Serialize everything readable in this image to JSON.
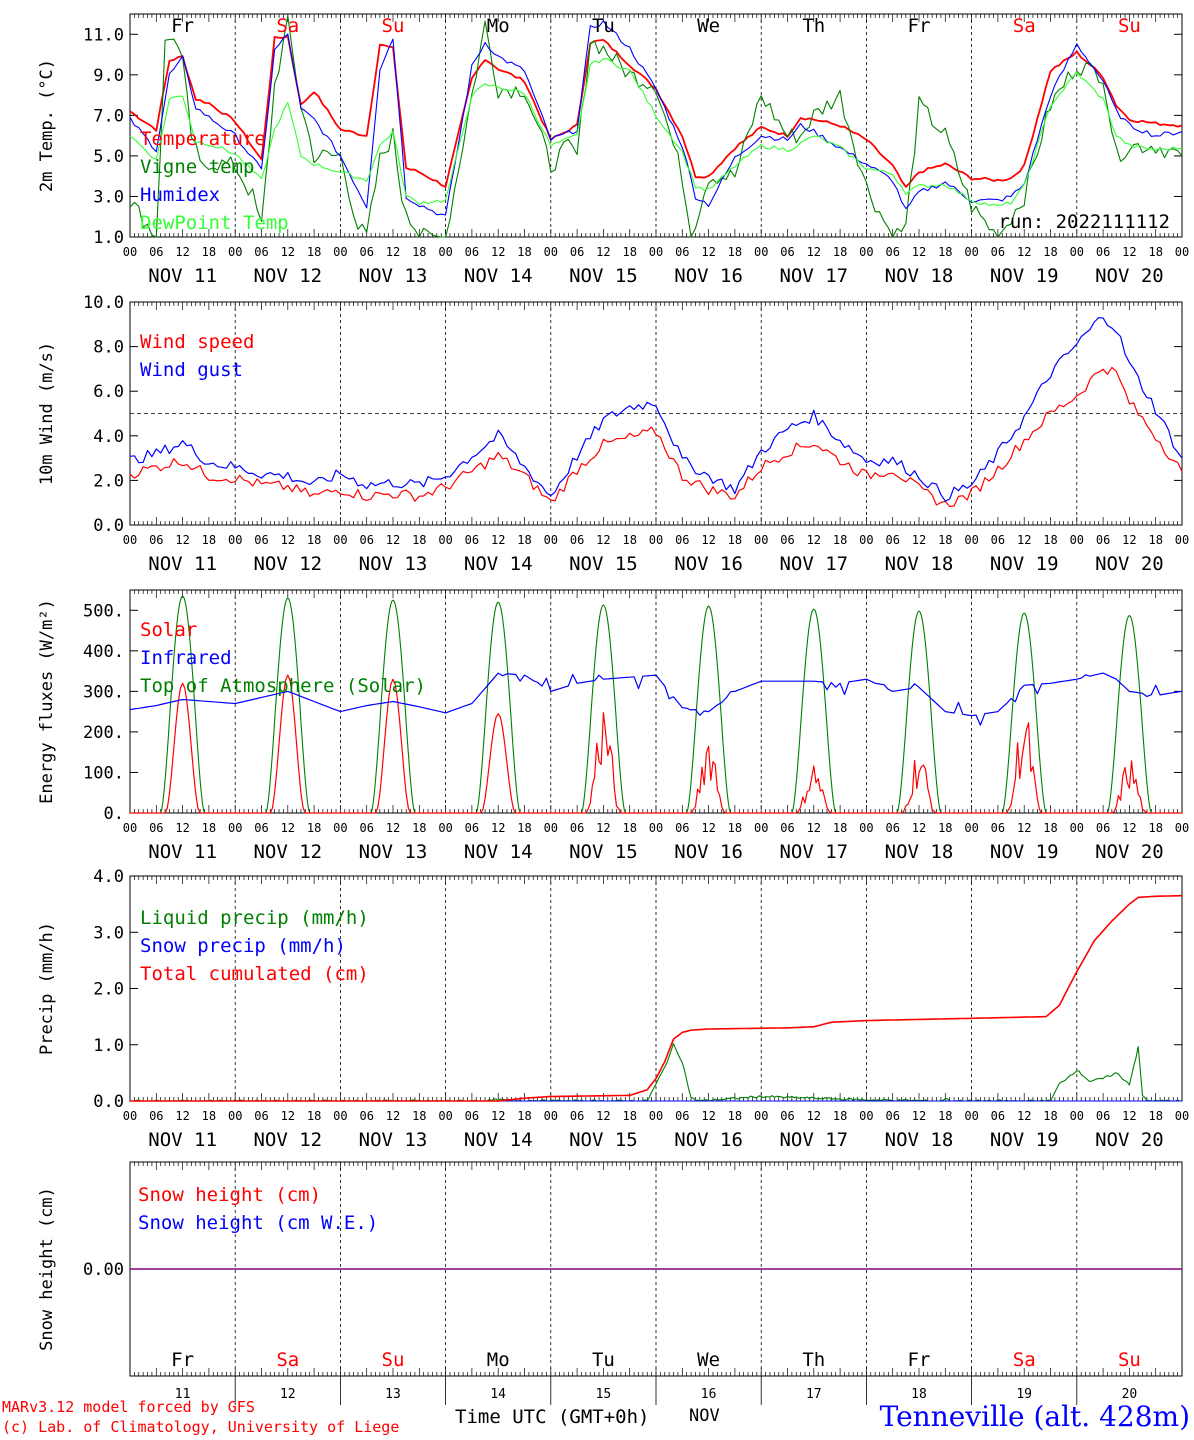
{
  "days_header": [
    "Fr",
    "Sa",
    "Su",
    "Mo",
    "Tu",
    "We",
    "Th",
    "Fr",
    "Sa",
    "Su"
  ],
  "days_header_red": [
    false,
    true,
    true,
    false,
    false,
    false,
    false,
    false,
    true,
    true
  ],
  "date_labels": [
    "NOV 11",
    "NOV 12",
    "NOV 13",
    "NOV 14",
    "NOV 15",
    "NOV 16",
    "NOV 17",
    "NOV 18",
    "NOV 19",
    "NOV 20"
  ],
  "hour_labels": [
    "00",
    "06",
    "12",
    "18"
  ],
  "hour_label_end": "00",
  "footer": {
    "day_numbers": [
      "11",
      "12",
      "13",
      "14",
      "15",
      "16",
      "17",
      "18",
      "19",
      "20"
    ],
    "month": "NOV",
    "xlabel": "Time UTC (GMT+0h)",
    "credit1": "MARv3.12 model forced by GFS",
    "credit2": "(c) Lab. of Climatology, University of Liege",
    "station": "Tenneville (alt. 428m)"
  },
  "colors": {
    "red": "#ff0000",
    "blue": "#0000ff",
    "green": "#008000",
    "lightgreen": "#33ff33",
    "purple": "#800080",
    "black": "#000000"
  },
  "chart_data": [
    {
      "type": "line",
      "ylabel": "2m Temp. (°C)",
      "ylim": [
        1.0,
        12.0
      ],
      "yticks": [
        "1.0",
        "3.0",
        "5.0",
        "7.0",
        "9.0",
        "11.0"
      ],
      "run_label": "run: 2022111112",
      "series": [
        {
          "name": "Temperature",
          "color": "red",
          "x": [
            0,
            6,
            9,
            12,
            15,
            18,
            24,
            30,
            33,
            36,
            39,
            42,
            48,
            54,
            57,
            60,
            63,
            66,
            72,
            78,
            81,
            84,
            90,
            96,
            102,
            105,
            108,
            114,
            120,
            126,
            129,
            132,
            138,
            144,
            150,
            153,
            156,
            162,
            168,
            174,
            177,
            180,
            186,
            192,
            198,
            201,
            204,
            210,
            216,
            222,
            225,
            228,
            234,
            240
          ],
          "y": [
            7.2,
            6.3,
            9.7,
            9.9,
            7.8,
            7.6,
            6.7,
            4.8,
            10.8,
            10.9,
            7.5,
            8.2,
            6.3,
            6.0,
            10.5,
            10.3,
            4.4,
            4.2,
            3.5,
            8.8,
            9.8,
            9.3,
            8.7,
            5.8,
            6.5,
            10.6,
            10.7,
            9.5,
            8.3,
            6.0,
            4.0,
            4.0,
            5.4,
            6.4,
            6.0,
            6.9,
            6.8,
            6.5,
            5.8,
            4.5,
            3.4,
            4.2,
            4.6,
            3.9,
            3.8,
            3.9,
            4.5,
            9.2,
            10.1,
            8.9,
            7.5,
            6.8,
            6.6,
            6.5
          ]
        },
        {
          "name": "Vigne temp",
          "color": "green",
          "x": [
            0,
            6,
            8,
            10,
            12,
            14,
            16,
            18,
            24,
            28,
            30,
            33,
            36,
            39,
            42,
            48,
            52,
            54,
            57,
            60,
            62,
            66,
            72,
            78,
            81,
            84,
            90,
            96,
            100,
            102,
            105,
            108,
            114,
            120,
            126,
            128,
            132,
            138,
            144,
            150,
            153,
            156,
            162,
            168,
            174,
            177,
            180,
            186,
            192,
            198,
            201,
            204,
            210,
            216,
            222,
            225,
            228,
            234,
            240
          ],
          "y": [
            2.8,
            1.0,
            10.5,
            11.0,
            9.5,
            6.0,
            4.5,
            4.7,
            4.5,
            3.0,
            1.5,
            8.5,
            11.5,
            7.5,
            5.0,
            5.0,
            1.5,
            1.0,
            4.8,
            6.0,
            3.0,
            1.0,
            1.0,
            8.0,
            11.5,
            8.3,
            8.3,
            4.5,
            5.5,
            5.0,
            10.7,
            10.3,
            9.0,
            8.5,
            4.0,
            1.0,
            4.0,
            4.0,
            8.0,
            6.0,
            6.0,
            7.0,
            8.0,
            3.5,
            1.0,
            1.5,
            7.5,
            6.0,
            2.5,
            1.0,
            2.0,
            3.0,
            7.5,
            9.5,
            9.0,
            5.0,
            5.5,
            5.5,
            5.0
          ]
        },
        {
          "name": "Humidex",
          "color": "blue",
          "x": [
            0,
            6,
            9,
            12,
            15,
            18,
            24,
            30,
            33,
            36,
            39,
            42,
            48,
            54,
            57,
            60,
            63,
            66,
            72,
            78,
            81,
            84,
            90,
            96,
            102,
            105,
            108,
            114,
            120,
            126,
            129,
            132,
            138,
            144,
            150,
            153,
            156,
            162,
            168,
            174,
            177,
            180,
            186,
            192,
            198,
            201,
            204,
            210,
            216,
            222,
            225,
            228,
            234,
            240
          ],
          "y": [
            6.8,
            5.3,
            9.0,
            9.8,
            7.4,
            6.9,
            6.0,
            4.3,
            10.2,
            11.0,
            7.3,
            6.8,
            5.0,
            2.5,
            9.3,
            10.8,
            3.0,
            2.6,
            2.0,
            9.4,
            10.6,
            9.9,
            9.2,
            5.8,
            6.3,
            11.3,
            11.6,
            10.3,
            8.3,
            5.5,
            3.0,
            2.6,
            4.9,
            6.0,
            5.8,
            6.5,
            6.2,
            5.4,
            4.6,
            3.8,
            2.3,
            3.2,
            3.7,
            2.8,
            2.8,
            3.0,
            3.6,
            8.0,
            10.5,
            8.7,
            7.2,
            6.5,
            6.0,
            6.2
          ]
        },
        {
          "name": "DewPoint Temp",
          "color": "lightgreen",
          "x": [
            0,
            6,
            9,
            12,
            15,
            18,
            24,
            30,
            33,
            36,
            39,
            42,
            48,
            54,
            57,
            60,
            63,
            66,
            72,
            78,
            81,
            84,
            90,
            96,
            102,
            105,
            108,
            114,
            120,
            126,
            129,
            132,
            138,
            144,
            150,
            153,
            156,
            162,
            168,
            174,
            177,
            180,
            186,
            192,
            198,
            201,
            204,
            210,
            216,
            222,
            225,
            228,
            234,
            240
          ],
          "y": [
            6.0,
            4.8,
            7.8,
            8.0,
            5.7,
            5.6,
            5.1,
            3.8,
            6.3,
            7.6,
            5.0,
            4.6,
            4.2,
            3.8,
            5.5,
            6.2,
            3.0,
            2.7,
            2.8,
            8.0,
            8.5,
            8.4,
            8.1,
            5.5,
            6.0,
            9.5,
            9.8,
            9.2,
            7.0,
            5.2,
            3.5,
            3.3,
            4.5,
            5.5,
            5.3,
            5.6,
            6.0,
            5.4,
            4.4,
            4.1,
            3.2,
            3.5,
            3.6,
            2.8,
            2.5,
            2.7,
            3.5,
            7.5,
            9.1,
            7.8,
            6.0,
            5.5,
            5.3,
            5.4
          ]
        }
      ]
    },
    {
      "type": "line",
      "ylabel": "10m Wind (m/s)",
      "ylim": [
        0.0,
        10.0
      ],
      "yticks": [
        "0.0",
        "2.0",
        "4.0",
        "6.0",
        "8.0",
        "10.0"
      ],
      "reference_line": 5.0,
      "series": [
        {
          "name": "Wind speed",
          "color": "red",
          "x": [
            0,
            6,
            12,
            18,
            24,
            30,
            36,
            42,
            48,
            54,
            60,
            66,
            72,
            78,
            84,
            90,
            96,
            102,
            108,
            114,
            120,
            126,
            132,
            138,
            144,
            150,
            156,
            162,
            168,
            174,
            180,
            186,
            192,
            198,
            204,
            210,
            216,
            222,
            225,
            228,
            234,
            240
          ],
          "y": [
            2.3,
            2.6,
            2.9,
            2.2,
            2.1,
            1.8,
            1.7,
            1.3,
            1.6,
            1.3,
            1.4,
            1.3,
            1.7,
            2.4,
            3.1,
            2.2,
            1.0,
            2.5,
            3.6,
            3.9,
            4.2,
            2.2,
            1.6,
            1.3,
            2.6,
            3.3,
            3.7,
            2.9,
            2.2,
            2.5,
            1.6,
            0.9,
            1.4,
            2.5,
            3.8,
            5.0,
            5.8,
            7.1,
            6.8,
            5.5,
            4.0,
            2.4
          ]
        },
        {
          "name": "Wind gust",
          "color": "blue",
          "x": [
            0,
            6,
            12,
            18,
            24,
            30,
            36,
            42,
            48,
            54,
            60,
            66,
            72,
            78,
            84,
            90,
            96,
            102,
            108,
            114,
            120,
            126,
            132,
            138,
            144,
            150,
            156,
            162,
            168,
            174,
            180,
            186,
            192,
            198,
            204,
            210,
            216,
            222,
            225,
            228,
            234,
            240
          ],
          "y": [
            2.9,
            3.2,
            3.7,
            2.8,
            2.6,
            2.3,
            2.2,
            1.8,
            2.3,
            1.8,
            1.9,
            1.8,
            2.2,
            3.1,
            4.0,
            2.6,
            1.3,
            3.1,
            4.7,
            5.3,
            5.5,
            2.9,
            2.2,
            1.6,
            3.3,
            4.3,
            4.9,
            3.8,
            2.9,
            2.9,
            2.2,
            1.3,
            1.8,
            3.2,
            4.8,
            6.8,
            8.1,
            9.4,
            8.8,
            7.2,
            5.2,
            3.0
          ]
        }
      ]
    },
    {
      "type": "line",
      "ylabel": "Energy fluxes (W/m²)",
      "ylim": [
        0,
        550
      ],
      "yticks": [
        "0.",
        "100.",
        "200.",
        "300.",
        "400.",
        "500."
      ],
      "series": [
        {
          "name": "Solar",
          "color": "red",
          "daily_peak": [
            320,
            340,
            330,
            245,
            290,
            220,
            135,
            170,
            270,
            145
          ]
        },
        {
          "name": "Infrared",
          "color": "blue",
          "x": [
            0,
            6,
            12,
            18,
            24,
            30,
            36,
            42,
            48,
            54,
            60,
            66,
            72,
            78,
            84,
            90,
            96,
            102,
            108,
            114,
            120,
            126,
            132,
            138,
            144,
            150,
            156,
            162,
            168,
            174,
            180,
            186,
            192,
            198,
            204,
            210,
            216,
            222,
            225,
            228,
            234,
            240
          ],
          "y": [
            255,
            265,
            280,
            275,
            270,
            285,
            300,
            275,
            250,
            265,
            275,
            262,
            247,
            270,
            345,
            340,
            300,
            320,
            330,
            335,
            340,
            260,
            250,
            300,
            325,
            325,
            325,
            320,
            330,
            300,
            310,
            250,
            240,
            250,
            315,
            320,
            330,
            345,
            330,
            300,
            290,
            300
          ]
        },
        {
          "name": "Top of Atmosphere (Solar)",
          "color": "green",
          "daily_peak": [
            535,
            530,
            525,
            520,
            513,
            510,
            503,
            498,
            493,
            487
          ]
        }
      ]
    },
    {
      "type": "line",
      "ylabel": "Precip (mm/h)",
      "ylim": [
        0.0,
        4.0
      ],
      "yticks": [
        "0.0",
        "1.0",
        "2.0",
        "3.0",
        "4.0"
      ],
      "series": [
        {
          "name": "Liquid precip (mm/h)",
          "color": "green",
          "x": [
            0,
            80,
            84,
            96,
            118,
            120,
            122,
            124,
            126,
            128,
            130,
            144,
            168,
            185,
            186,
            187,
            188,
            210,
            212,
            216,
            219,
            222,
            225,
            228,
            230,
            231,
            232,
            233,
            235,
            240
          ],
          "y": [
            0,
            0,
            0.02,
            0,
            0,
            0.3,
            0.6,
            1.0,
            0.7,
            0.05,
            0,
            0.08,
            0.02,
            0,
            0.05,
            0,
            0,
            0,
            0.3,
            0.55,
            0.35,
            0.4,
            0.5,
            0.3,
            0.95,
            0.1,
            0.01,
            0,
            0,
            0
          ]
        },
        {
          "name": "Snow precip (mm/h)",
          "color": "blue",
          "x": [
            0,
            240
          ],
          "y": [
            0,
            0
          ]
        },
        {
          "name": "Total cumulated (cm)",
          "color": "red",
          "x": [
            0,
            84,
            90,
            96,
            114,
            118,
            120,
            122,
            124,
            126,
            128,
            132,
            150,
            156,
            160,
            168,
            192,
            209,
            212,
            216,
            220,
            224,
            228,
            230,
            234,
            240
          ],
          "y": [
            0,
            0,
            0.05,
            0.08,
            0.1,
            0.2,
            0.4,
            0.7,
            1.1,
            1.22,
            1.26,
            1.28,
            1.3,
            1.32,
            1.4,
            1.43,
            1.47,
            1.5,
            1.7,
            2.3,
            2.85,
            3.2,
            3.5,
            3.62,
            3.64,
            3.65
          ]
        }
      ]
    },
    {
      "type": "line",
      "ylabel": "Snow height (cm)",
      "yticks": [
        "0.00"
      ],
      "series": [
        {
          "name": "Snow height (cm)",
          "color": "red",
          "x": [
            0,
            240
          ],
          "y": [
            0,
            0
          ]
        },
        {
          "name": "Snow height (cm W.E.)",
          "color": "blue",
          "x": [
            0,
            240
          ],
          "y": [
            0,
            0
          ]
        }
      ]
    }
  ]
}
